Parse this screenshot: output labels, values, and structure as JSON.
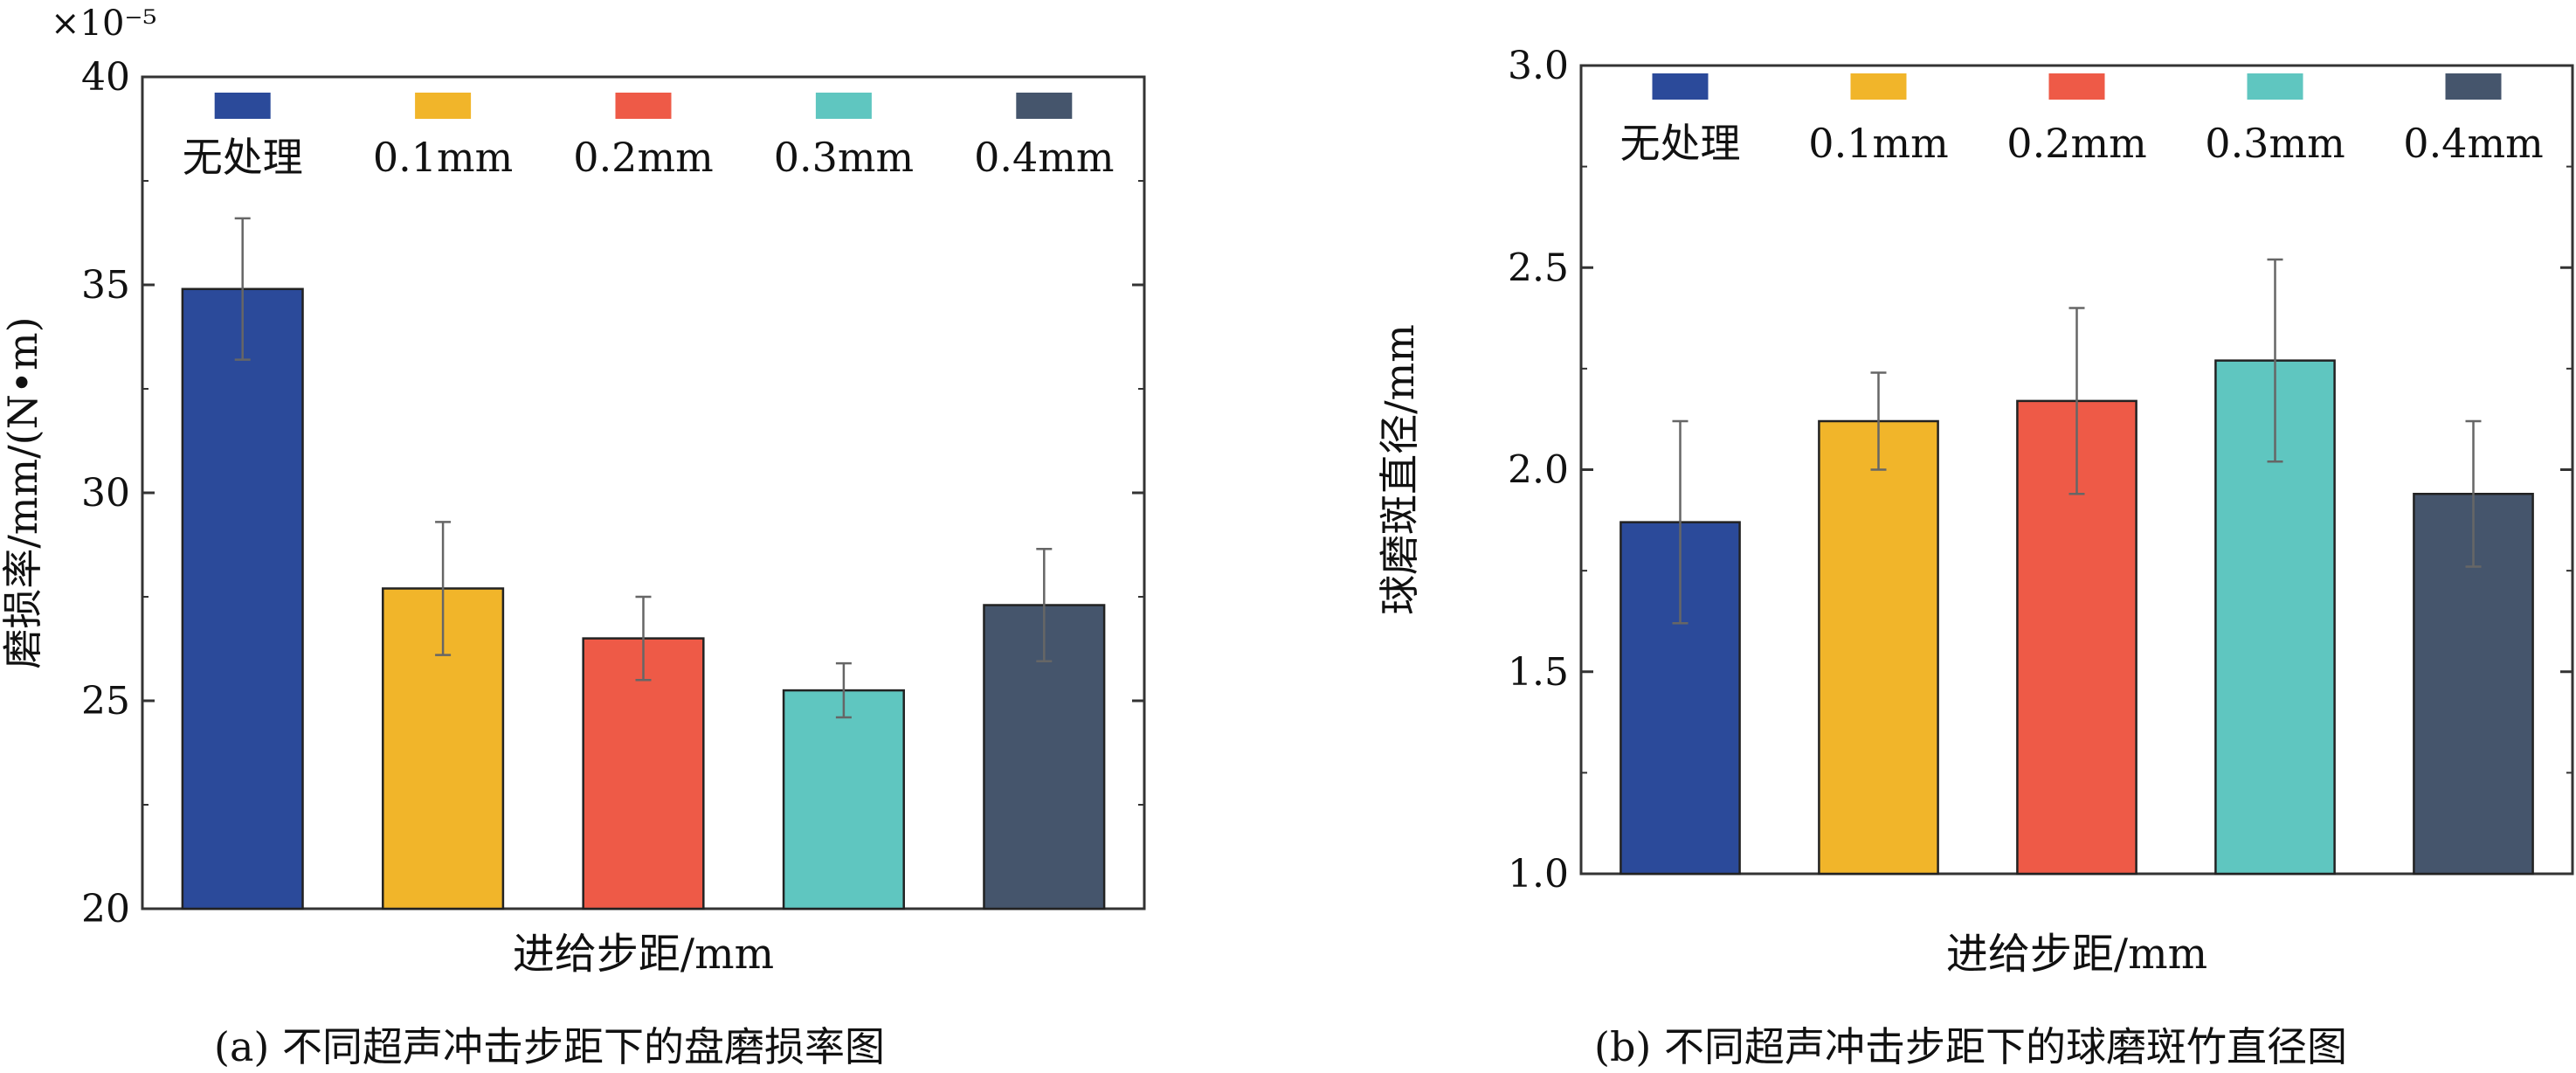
{
  "figure": {
    "caption_a": "(a) 不同超声冲击步距下的盘磨损率图",
    "caption_b": "(b) 不同超声冲击步距下的球磨斑竹直径图"
  },
  "chart_data": [
    {
      "type": "bar",
      "id": "a",
      "scale_note": "×10⁻⁵",
      "xlabel": "进给步距/mm",
      "ylabel": "磨损率/mm/(N•m)",
      "ylim": [
        20,
        40
      ],
      "yticks": [
        "20",
        "25",
        "30",
        "35",
        "40"
      ],
      "ytick_values": [
        20,
        25,
        30,
        35,
        40
      ],
      "grid": false,
      "legend_placement": "top, horizontal, inside plot",
      "series": [
        {
          "name": "无处理",
          "value": 34.9,
          "error": 1.7,
          "color": "#2b4a9a"
        },
        {
          "name": "0.1mm",
          "value": 27.7,
          "error": 1.6,
          "color": "#f1b52a"
        },
        {
          "name": "0.2mm",
          "value": 26.5,
          "error": 1.0,
          "color": "#ee5a47"
        },
        {
          "name": "0.3mm",
          "value": 25.25,
          "error": 0.65,
          "color": "#5fc6c0"
        },
        {
          "name": "0.4mm",
          "value": 27.3,
          "error": 1.35,
          "color": "#45556c"
        }
      ]
    },
    {
      "type": "bar",
      "id": "b",
      "xlabel": "进给步距/mm",
      "ylabel": "球磨斑直径/mm",
      "ylim": [
        1.0,
        3.0
      ],
      "yticks": [
        "1.0",
        "1.5",
        "2.0",
        "2.5",
        "3.0"
      ],
      "ytick_values": [
        1.0,
        1.5,
        2.0,
        2.5,
        3.0
      ],
      "grid": false,
      "legend_placement": "top, horizontal, inside plot",
      "series": [
        {
          "name": "无处理",
          "value": 1.87,
          "error": 0.25,
          "color": "#2b4a9a"
        },
        {
          "name": "0.1mm",
          "value": 2.12,
          "error": 0.12,
          "color": "#f1b52a"
        },
        {
          "name": "0.2mm",
          "value": 2.17,
          "error": 0.23,
          "color": "#ee5a47"
        },
        {
          "name": "0.3mm",
          "value": 2.27,
          "error": 0.25,
          "color": "#5fc6c0"
        },
        {
          "name": "0.4mm",
          "value": 1.94,
          "error": 0.18,
          "color": "#45556c"
        }
      ]
    }
  ]
}
